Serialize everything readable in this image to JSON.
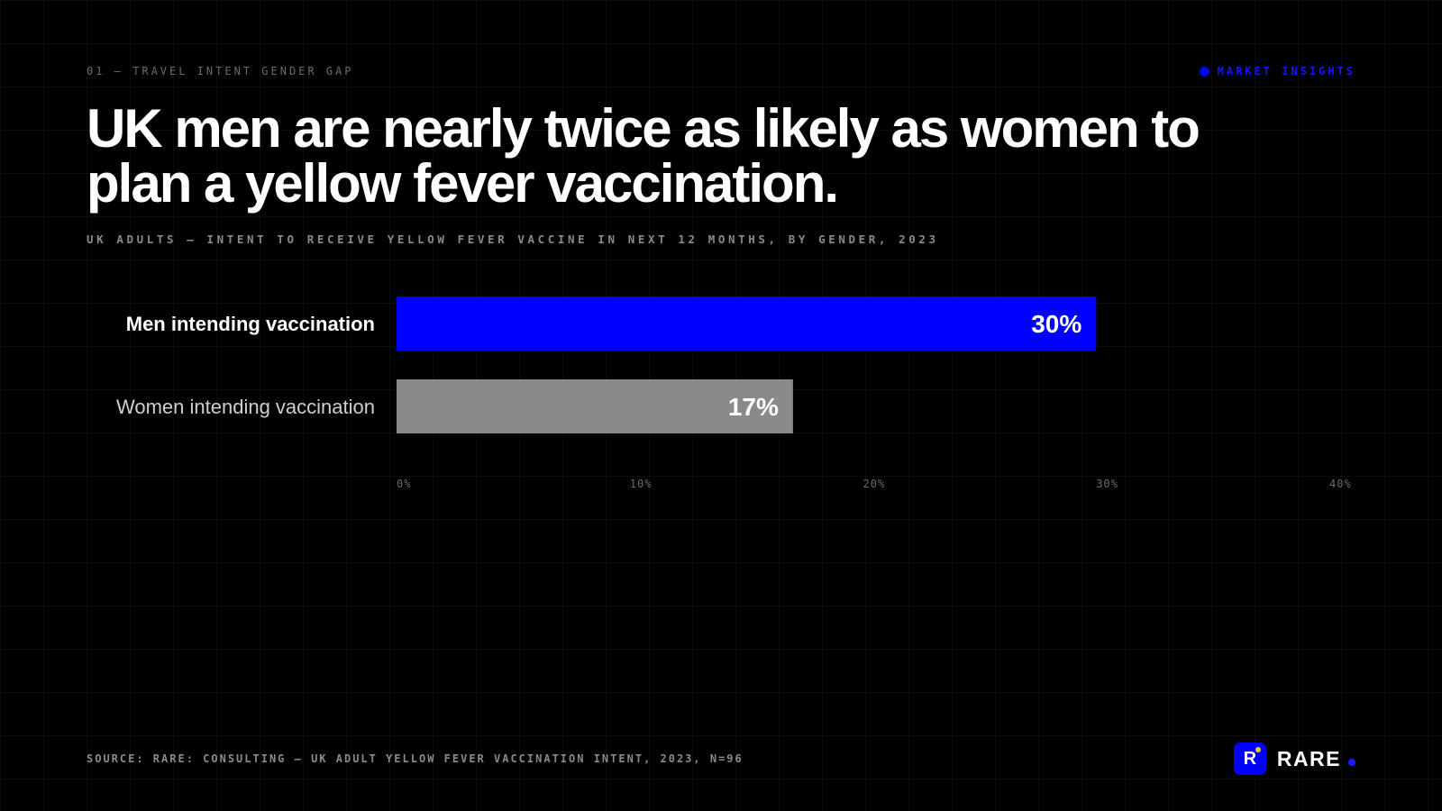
{
  "eyebrow": "01 — TRAVEL INTENT GENDER GAP",
  "badge": {
    "label": "MARKET INSIGHTS",
    "color": "#0000ff"
  },
  "headline": "UK men are nearly twice as likely as women to plan a yellow fever vaccination.",
  "subtitle": "UK ADULTS — INTENT TO RECEIVE YELLOW FEVER VACCINE IN NEXT 12 MONTHS, BY GENDER, 2023",
  "chart_data": {
    "type": "bar",
    "orientation": "horizontal",
    "title": "",
    "xlabel": "",
    "ylabel": "",
    "categories": [
      "Men intending vaccination",
      "Women intending vaccination"
    ],
    "values": [
      30,
      17
    ],
    "value_labels": [
      "30%",
      "17%"
    ],
    "colors": [
      "#0000ff",
      "#8a8a8a"
    ],
    "xlim": [
      0,
      40
    ],
    "ticks": [
      0,
      10,
      20,
      30,
      40
    ],
    "tick_labels": [
      "0%",
      "10%",
      "20%",
      "30%",
      "40%"
    ],
    "grid": true,
    "legend": "none"
  },
  "source": "SOURCE: RARE: CONSULTING — UK ADULT YELLOW FEVER VACCINATION INTENT, 2023, N=96",
  "brand": {
    "logo_letter": "R",
    "name": "RARE"
  }
}
